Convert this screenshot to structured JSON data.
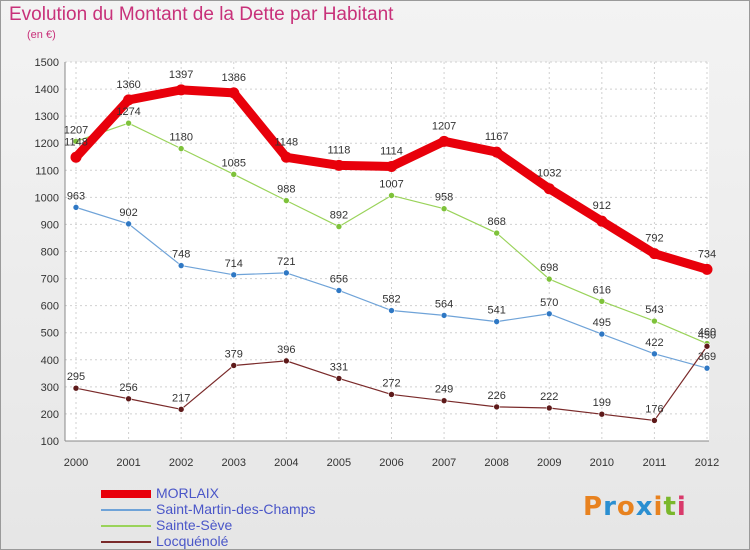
{
  "title": "Evolution du Montant de la Dette par Habitant",
  "subtitle": "(en €)",
  "logo_text": "Proxiti",
  "logo_colors": [
    "#e8821f",
    "#2b8fd1",
    "#e8821f",
    "#2b8fd1",
    "#e8821f",
    "#7ab72b",
    "#d93a6b"
  ],
  "chart_data": {
    "type": "line",
    "x": [
      "2000",
      "2001",
      "2002",
      "2003",
      "2004",
      "2005",
      "2006",
      "2007",
      "2008",
      "2009",
      "2010",
      "2011",
      "2012"
    ],
    "ylim": [
      100,
      1500
    ],
    "yticks": [
      "100",
      "200",
      "300",
      "400",
      "500",
      "600",
      "700",
      "800",
      "900",
      "1000",
      "1100",
      "1200",
      "1300",
      "1400",
      "1500"
    ],
    "grid": true,
    "legend_position": "bottom-left",
    "series": [
      {
        "name": "MORLAIX",
        "color": "#e8000b",
        "marker": "#e8000b",
        "values": [
          1148,
          1360,
          1397,
          1386,
          1148,
          1118,
          1114,
          1207,
          1167,
          1032,
          912,
          792,
          734
        ]
      },
      {
        "name": "Saint-Martin-des-Champs",
        "color": "#6fa3d8",
        "marker": "#2f78c4",
        "values": [
          963,
          902,
          748,
          714,
          721,
          656,
          582,
          564,
          541,
          570,
          495,
          422,
          369
        ]
      },
      {
        "name": "Sainte-Sève",
        "color": "#9ad35a",
        "marker": "#7ec23a",
        "values": [
          1207,
          1274,
          1180,
          1085,
          988,
          892,
          1007,
          958,
          868,
          698,
          616,
          543,
          460
        ]
      },
      {
        "name": "Locquénolé",
        "color": "#7a2a2a",
        "marker": "#5e1a1a",
        "values": [
          295,
          256,
          217,
          379,
          396,
          331,
          272,
          249,
          226,
          222,
          199,
          176,
          450
        ]
      }
    ]
  }
}
